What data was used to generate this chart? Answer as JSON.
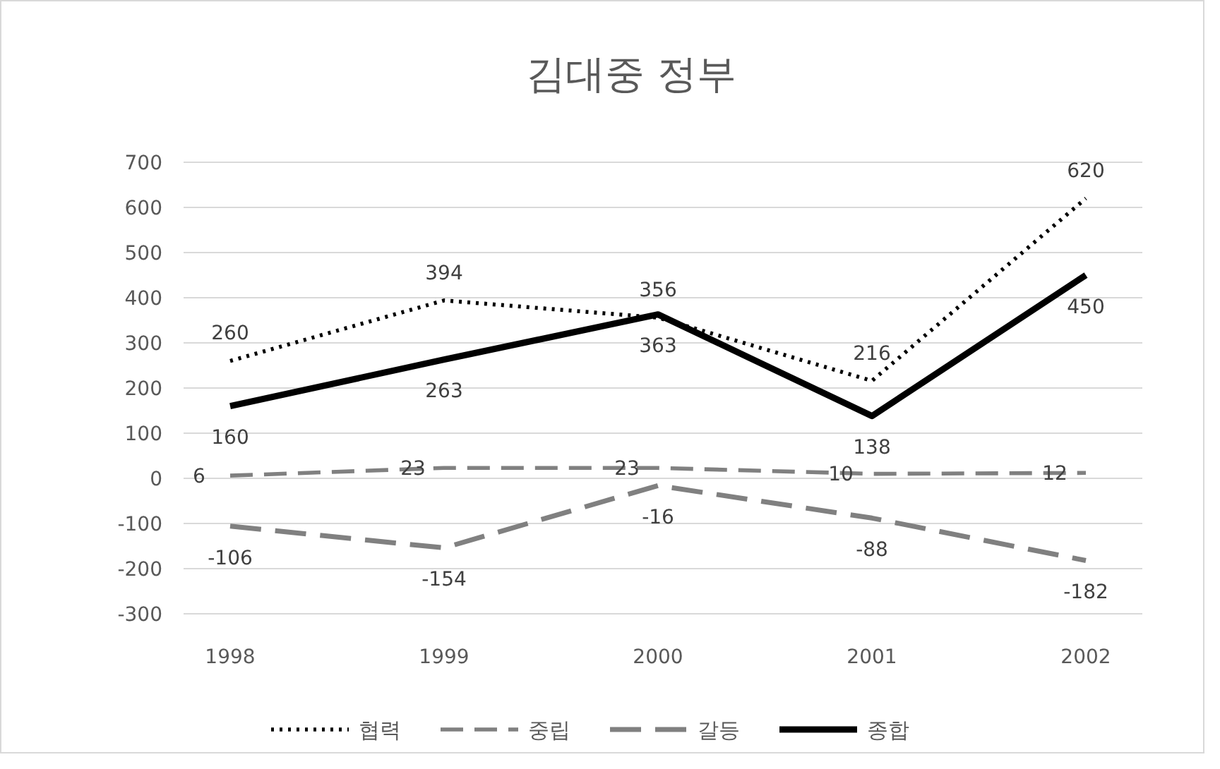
{
  "chart_data": {
    "type": "line",
    "title": "김대중 정부",
    "categories": [
      "1998",
      "1999",
      "2000",
      "2001",
      "2002"
    ],
    "series": [
      {
        "name": "협력",
        "color": "#000000",
        "line_style": "dotted",
        "values": [
          260,
          394,
          356,
          216,
          620
        ]
      },
      {
        "name": "중립",
        "color": "#808080",
        "line_style": "dashed",
        "values": [
          6,
          23,
          23,
          10,
          12
        ]
      },
      {
        "name": "갈등",
        "color": "#808080",
        "line_style": "dashed",
        "values": [
          -106,
          -154,
          -16,
          -88,
          -182
        ]
      },
      {
        "name": "종합",
        "color": "#000000",
        "line_style": "solid",
        "values": [
          160,
          263,
          363,
          138,
          450
        ]
      }
    ],
    "ylim": [
      -300,
      700
    ],
    "yticks": [
      -300,
      -200,
      -100,
      0,
      100,
      200,
      300,
      400,
      500,
      600,
      700
    ],
    "grid": "y",
    "legend": "bottom",
    "data_labels": true
  }
}
